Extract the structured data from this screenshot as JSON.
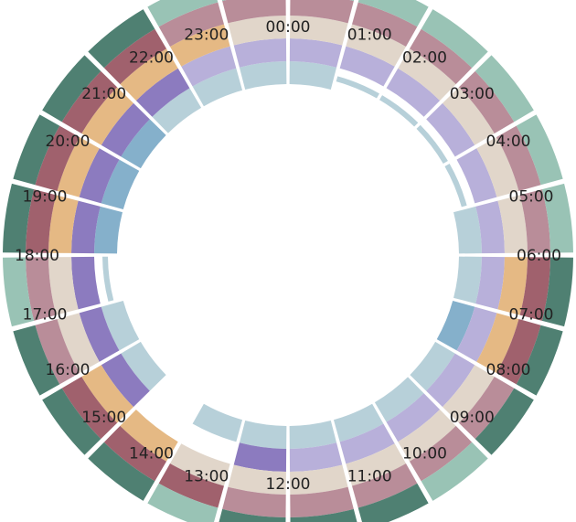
{
  "chart_data": {
    "type": "radial-heatmap",
    "title": "",
    "hour_labels": [
      "00:00",
      "01:00",
      "02:00",
      "03:00",
      "04:00",
      "05:00",
      "06:00",
      "07:00",
      "08:00",
      "09:00",
      "10:00",
      "11:00",
      "12:00",
      "13:00",
      "14:00",
      "15:00",
      "16:00",
      "17:00",
      "18:00",
      "19:00",
      "20:00",
      "21:00",
      "22:00",
      "23:00"
    ],
    "levels": [
      {
        "level": 1,
        "color": "#b7d0d9"
      },
      {
        "level": 2,
        "color": "#85b0cb"
      },
      {
        "level": 3,
        "color": "#b8b0da"
      },
      {
        "level": 4,
        "color": "#8c7bbf"
      },
      {
        "level": 5,
        "color": "#e1d6ca"
      },
      {
        "level": 6,
        "color": "#e5b984"
      },
      {
        "level": 7,
        "color": "#b98d99"
      },
      {
        "level": 8,
        "color": "#a0616d"
      },
      {
        "level": 9,
        "color": "#99c3b5"
      },
      {
        "level": 10,
        "color": "#4f8072"
      }
    ],
    "rings": [
      {
        "ring": 1,
        "values": [
          1,
          0.5,
          0.5,
          0.5,
          0.5,
          1,
          1,
          2,
          1,
          1,
          1,
          1,
          1,
          1,
          0,
          1,
          1,
          0.5,
          2,
          2,
          2,
          1,
          1,
          1
        ]
      },
      {
        "ring": 2,
        "values": [
          3,
          3,
          3,
          3,
          3,
          3,
          3,
          3,
          3,
          3,
          3,
          3,
          4,
          0,
          0,
          4,
          4,
          4,
          4,
          4,
          4,
          4,
          3,
          3
        ]
      },
      {
        "ring": 3,
        "values": [
          5,
          5,
          5,
          5,
          5,
          5,
          6,
          6,
          5,
          5,
          5,
          5,
          5,
          5,
          6,
          6,
          5,
          5,
          6,
          6,
          6,
          6,
          6,
          5
        ]
      },
      {
        "ring": 4,
        "values": [
          7,
          7,
          7,
          7,
          7,
          7,
          8,
          8,
          7,
          7,
          7,
          7,
          7,
          8,
          8,
          8,
          7,
          7,
          8,
          8,
          8,
          8,
          7,
          7
        ]
      },
      {
        "ring": 5,
        "values": [
          9,
          9,
          9,
          9,
          9,
          9,
          10,
          10,
          10,
          9,
          10,
          10,
          10,
          9,
          10,
          10,
          10,
          9,
          10,
          10,
          10,
          10,
          9,
          9
        ]
      }
    ]
  }
}
